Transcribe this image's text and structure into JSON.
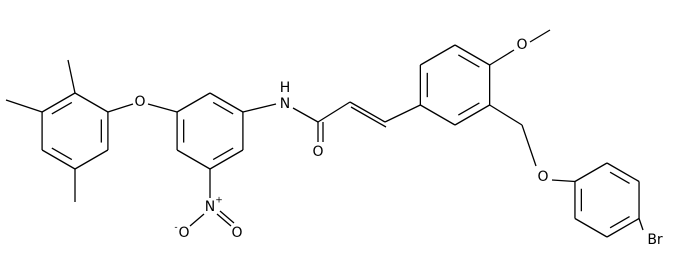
{
  "atoms": [
    {
      "label": "O"
    },
    {
      "label": "H"
    },
    {
      "label": "N"
    },
    {
      "label": "O"
    },
    {
      "label": "N"
    },
    {
      "label": "+"
    },
    {
      "label": "O"
    },
    {
      "label": "-"
    },
    {
      "label": "O"
    },
    {
      "label": "O"
    },
    {
      "label": "O"
    },
    {
      "label": "Br"
    }
  ]
}
